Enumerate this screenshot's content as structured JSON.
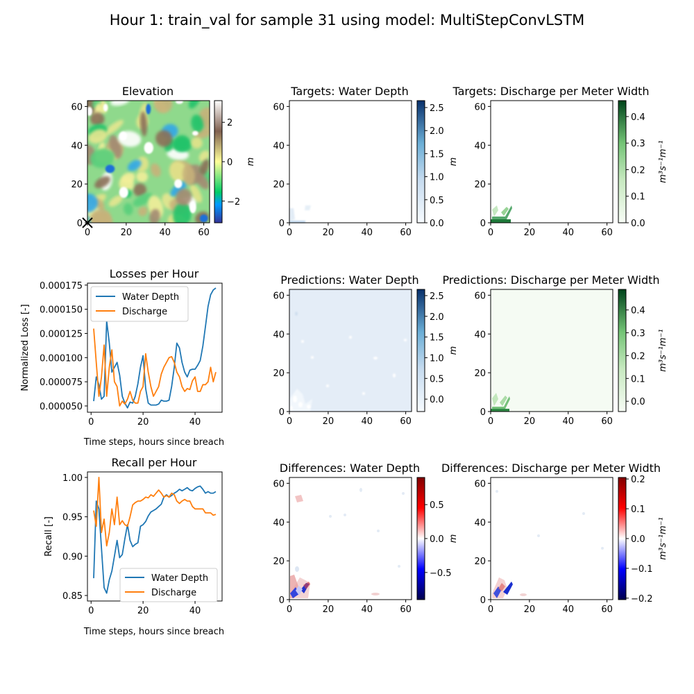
{
  "suptitle": "Hour 1: train_val for sample 31 using model: MultiStepConvLSTM",
  "colors": {
    "blue": "#1f77b4",
    "orange": "#ff7f0e"
  },
  "chart_data": [
    {
      "id": "elevation",
      "type": "heatmap",
      "title": "Elevation",
      "xlim": [
        0,
        63
      ],
      "ylim": [
        0,
        63
      ],
      "xticks": [
        "0",
        "20",
        "40",
        "60"
      ],
      "yticks": [
        "0",
        "20",
        "40",
        "60"
      ],
      "colormap": "terrain",
      "colorbar": {
        "label": "m",
        "range": [
          -3.1,
          3.1
        ],
        "ticks": [
          "−2",
          "0",
          "2"
        ],
        "tick_values": [
          -2,
          0,
          2
        ]
      },
      "marker": {
        "symbol": "x",
        "x": 0,
        "y": 0
      }
    },
    {
      "id": "targets-depth",
      "type": "heatmap",
      "title": "Targets: Water Depth",
      "xlim": [
        0,
        63
      ],
      "ylim": [
        0,
        63
      ],
      "xticks": [
        "0",
        "20",
        "40",
        "60"
      ],
      "yticks": [
        "0",
        "20",
        "40",
        "60"
      ],
      "colormap": "Blues",
      "colorbar": {
        "label": "m",
        "range": [
          0,
          2.65
        ],
        "ticks": [
          "0.0",
          "0.5",
          "1.0",
          "1.5",
          "2.0",
          "2.5"
        ],
        "tick_values": [
          0,
          0.5,
          1.0,
          1.5,
          2.0,
          2.5
        ]
      }
    },
    {
      "id": "targets-discharge",
      "type": "heatmap",
      "title": "Targets: Discharge per Meter Width",
      "xlim": [
        0,
        63
      ],
      "ylim": [
        0,
        63
      ],
      "xticks": [
        "0",
        "20",
        "40",
        "60"
      ],
      "yticks": [
        "0",
        "20",
        "40",
        "60"
      ],
      "colormap": "Greens",
      "colorbar": {
        "label": "m³s⁻¹m⁻¹",
        "range": [
          0,
          0.46
        ],
        "ticks": [
          "0.0",
          "0.1",
          "0.2",
          "0.3",
          "0.4"
        ],
        "tick_values": [
          0,
          0.1,
          0.2,
          0.3,
          0.4
        ]
      }
    },
    {
      "id": "losses",
      "type": "line",
      "title": "Losses per Hour",
      "xlabel": "Time steps, hours since breach",
      "ylabel": "Normalized Loss [-]",
      "xlim": [
        -1.4,
        50.4
      ],
      "ylim": [
        4.35e-05,
        0.000177
      ],
      "xticks": [
        "0",
        "20",
        "40"
      ],
      "xtick_values": [
        0,
        20,
        40
      ],
      "yticks": [
        "0.000050",
        "0.000075",
        "0.000100",
        "0.000125",
        "0.000150",
        "0.000175"
      ],
      "ytick_values": [
        5e-05,
        7.5e-05,
        0.0001,
        0.000125,
        0.00015,
        0.000175
      ],
      "legend": "upper-left",
      "series": [
        {
          "name": "Water Depth",
          "color": "#1f77b4",
          "x": [
            1,
            2,
            3,
            4,
            5,
            6,
            7,
            8,
            9,
            10,
            11,
            12,
            13,
            14,
            15,
            16,
            17,
            18,
            19,
            20,
            21,
            22,
            23,
            24,
            25,
            26,
            27,
            28,
            29,
            30,
            31,
            32,
            33,
            34,
            35,
            36,
            37,
            38,
            39,
            40,
            41,
            42,
            43,
            44,
            45,
            46,
            47,
            48
          ],
          "y": [
            5.5e-05,
            8e-05,
            7.2e-05,
            5.7e-05,
            6e-05,
            0.000138,
            0.000115,
            8.5e-05,
            9e-05,
            9.5e-05,
            8.2e-05,
            6e-05,
            5.3e-05,
            4.8e-05,
            5.4e-05,
            5.3e-05,
            6e-05,
            7.3e-05,
            9e-05,
            0.000102,
            6.8e-05,
            5.3e-05,
            5.1e-05,
            5.1e-05,
            5.1e-05,
            5.2e-05,
            5.6e-05,
            5.5e-05,
            5.5e-05,
            5.6e-05,
            7e-05,
            9e-05,
            0.000115,
            0.00011,
            9.5e-05,
            8.5e-05,
            8e-05,
            8.7e-05,
            8.8e-05,
            8.8e-05,
            9.2e-05,
            9.7e-05,
            0.000112,
            0.000132,
            0.000153,
            0.000165,
            0.00017,
            0.000172
          ]
        },
        {
          "name": "Discharge",
          "color": "#ff7f0e",
          "x": [
            1,
            2,
            3,
            4,
            5,
            6,
            7,
            8,
            9,
            10,
            11,
            12,
            13,
            14,
            15,
            16,
            17,
            18,
            19,
            20,
            21,
            22,
            23,
            24,
            25,
            26,
            27,
            28,
            29,
            30,
            31,
            32,
            33,
            34,
            35,
            36,
            37,
            38,
            39,
            40,
            41,
            42,
            43,
            44,
            45,
            46,
            47,
            48
          ],
          "y": [
            0.00013,
            9.5e-05,
            6e-05,
            8e-05,
            0.000113,
            6e-05,
            9e-05,
            0.000108,
            7.5e-05,
            7e-05,
            5e-05,
            5.5e-05,
            5.2e-05,
            5.7e-05,
            6.5e-05,
            5.6e-05,
            5.3e-05,
            5.3e-05,
            6.5e-05,
            7e-05,
            0.000104,
            8.5e-05,
            7e-05,
            6e-05,
            6.5e-05,
            7e-05,
            8.3e-05,
            9e-05,
            9.5e-05,
            0.0001,
            0.000101,
            9.5e-05,
            8.5e-05,
            8e-05,
            7e-05,
            6.5e-05,
            6.8e-05,
            6.7e-05,
            7.6e-05,
            8e-05,
            6.5e-05,
            6.5e-05,
            7.2e-05,
            7.2e-05,
            7.5e-05,
            9e-05,
            7.5e-05,
            8.5e-05
          ]
        }
      ]
    },
    {
      "id": "pred-depth",
      "type": "heatmap",
      "title": "Predictions: Water Depth",
      "xlim": [
        0,
        63
      ],
      "ylim": [
        0,
        63
      ],
      "xticks": [
        "0",
        "20",
        "40",
        "60"
      ],
      "yticks": [
        "0",
        "20",
        "40",
        "60"
      ],
      "colormap": "Blues",
      "colorbar": {
        "label": "m",
        "range": [
          -0.3,
          2.65
        ],
        "ticks": [
          "0.0",
          "0.5",
          "1.0",
          "1.5",
          "2.0",
          "2.5"
        ],
        "tick_values": [
          0,
          0.5,
          1.0,
          1.5,
          2.0,
          2.5
        ]
      }
    },
    {
      "id": "pred-discharge",
      "type": "heatmap",
      "title": "Predictions: Discharge per Meter Width",
      "xlim": [
        0,
        63
      ],
      "ylim": [
        0,
        63
      ],
      "xticks": [
        "0",
        "20",
        "40",
        "60"
      ],
      "yticks": [
        "0",
        "20",
        "40",
        "60"
      ],
      "colormap": "Greens",
      "colorbar": {
        "label": "m³s⁻¹m⁻¹",
        "range": [
          -0.045,
          0.49
        ],
        "ticks": [
          "0.0",
          "0.1",
          "0.2",
          "0.3",
          "0.4"
        ],
        "tick_values": [
          0,
          0.1,
          0.2,
          0.3,
          0.4
        ]
      }
    },
    {
      "id": "recall",
      "type": "line",
      "title": "Recall per Hour",
      "xlabel": "Time steps, hours since breach",
      "ylabel": "Recall [-]",
      "xlim": [
        -1.4,
        50.4
      ],
      "ylim": [
        0.843,
        1.007
      ],
      "xticks": [
        "0",
        "20",
        "40"
      ],
      "xtick_values": [
        0,
        20,
        40
      ],
      "yticks": [
        "0.85",
        "0.90",
        "0.95",
        "1.00"
      ],
      "ytick_values": [
        0.85,
        0.9,
        0.95,
        1.0
      ],
      "legend": "lower-right",
      "series": [
        {
          "name": "Water Depth",
          "color": "#1f77b4",
          "x": [
            1,
            2,
            3,
            4,
            5,
            6,
            7,
            8,
            9,
            10,
            11,
            12,
            13,
            14,
            15,
            16,
            17,
            18,
            19,
            20,
            21,
            22,
            23,
            24,
            25,
            26,
            27,
            28,
            29,
            30,
            31,
            32,
            33,
            34,
            35,
            36,
            37,
            38,
            39,
            40,
            41,
            42,
            43,
            44,
            45,
            46,
            47,
            48
          ],
          "y": [
            0.872,
            0.97,
            0.96,
            0.91,
            0.86,
            0.853,
            0.87,
            0.881,
            0.9,
            0.92,
            0.898,
            0.902,
            0.922,
            0.94,
            0.92,
            0.912,
            0.915,
            0.917,
            0.938,
            0.94,
            0.944,
            0.951,
            0.956,
            0.958,
            0.96,
            0.963,
            0.966,
            0.975,
            0.978,
            0.975,
            0.977,
            0.98,
            0.982,
            0.985,
            0.983,
            0.985,
            0.987,
            0.984,
            0.983,
            0.986,
            0.988,
            0.989,
            0.985,
            0.98,
            0.982,
            0.98,
            0.98,
            0.982
          ]
        },
        {
          "name": "Discharge",
          "color": "#ff7f0e",
          "x": [
            1,
            2,
            3,
            4,
            5,
            6,
            7,
            8,
            9,
            10,
            11,
            12,
            13,
            14,
            15,
            16,
            17,
            18,
            19,
            20,
            21,
            22,
            23,
            24,
            25,
            26,
            27,
            28,
            29,
            30,
            31,
            32,
            33,
            34,
            35,
            36,
            37,
            38,
            39,
            40,
            41,
            42,
            43,
            44,
            45,
            46,
            47,
            48
          ],
          "y": [
            0.958,
            0.938,
            1.0,
            0.93,
            0.947,
            0.913,
            0.93,
            0.96,
            0.94,
            0.975,
            0.94,
            0.945,
            0.94,
            0.938,
            0.95,
            0.965,
            0.968,
            0.97,
            0.97,
            0.972,
            0.975,
            0.974,
            0.978,
            0.976,
            0.98,
            0.984,
            0.98,
            0.975,
            0.977,
            0.975,
            0.98,
            0.978,
            0.97,
            0.967,
            0.97,
            0.972,
            0.97,
            0.97,
            0.963,
            0.96,
            0.96,
            0.96,
            0.96,
            0.955,
            0.955,
            0.955,
            0.952,
            0.953
          ]
        }
      ]
    },
    {
      "id": "diff-depth",
      "type": "heatmap",
      "title": "Differences: Water Depth",
      "xlim": [
        0,
        63
      ],
      "ylim": [
        0,
        63
      ],
      "xticks": [
        "0",
        "20",
        "40",
        "60"
      ],
      "yticks": [
        "0",
        "20",
        "40",
        "60"
      ],
      "colormap": "seismic",
      "colorbar": {
        "label": "m",
        "range": [
          -0.9,
          0.9
        ],
        "ticks": [
          "−0.5",
          "0.0",
          "0.5"
        ],
        "tick_values": [
          -0.5,
          0,
          0.5
        ]
      }
    },
    {
      "id": "diff-discharge",
      "type": "heatmap",
      "title": "Differences: Discharge per Meter Width",
      "xlim": [
        0,
        63
      ],
      "ylim": [
        0,
        63
      ],
      "xticks": [
        "0",
        "20",
        "40",
        "60"
      ],
      "yticks": [
        "0",
        "20",
        "40",
        "60"
      ],
      "colormap": "seismic",
      "colorbar": {
        "label": "m³s⁻¹m⁻¹",
        "range": [
          -0.205,
          0.205
        ],
        "ticks": [
          "−0.2",
          "−0.1",
          "0.0",
          "0.1",
          "0.2"
        ],
        "tick_values": [
          -0.2,
          -0.1,
          0,
          0.1,
          0.2
        ]
      }
    }
  ]
}
